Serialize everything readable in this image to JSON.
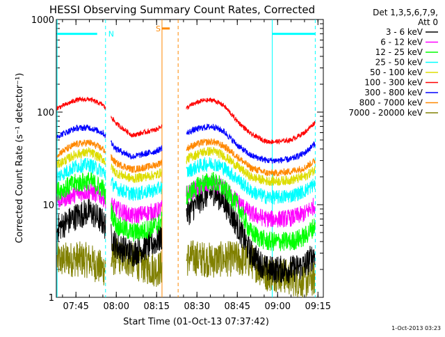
{
  "chart_data": {
    "type": "line",
    "title": "HESSI Observing Summary Count Rates, Corrected",
    "xlabel": "Start Time (01-Oct-13 07:37:42)",
    "ylabel": "Corrected Count Rate (s⁻¹ detector⁻¹)",
    "y_scale": "log",
    "ylim": [
      1,
      1000
    ],
    "xlim": [
      "07:37:42",
      "09:17:00"
    ],
    "x_ticks": [
      "07:45",
      "08:00",
      "08:15",
      "08:30",
      "08:45",
      "09:00",
      "09:15"
    ],
    "y_ticks": [
      "1",
      "10",
      "100",
      "1000"
    ],
    "legend_header": [
      "Det 1,3,5,6,7,9,",
      "Att 0"
    ],
    "legend_position": "right",
    "series": [
      {
        "name": "3 - 6 keV",
        "color": "#000000",
        "x": [
          "07:38",
          "07:45",
          "07:50",
          "07:55",
          "08:00",
          "08:06",
          "08:10",
          "08:15",
          "08:28",
          "08:32",
          "08:36",
          "08:40",
          "08:45",
          "08:50",
          "08:56",
          "09:00",
          "09:05",
          "09:10",
          "09:14"
        ],
        "y": [
          5.5,
          7.5,
          8.5,
          6.5,
          3.6,
          3.0,
          3.4,
          4.0,
          9.0,
          12,
          14,
          11,
          6.0,
          3.0,
          2.0,
          2.0,
          2.0,
          2.2,
          3.0
        ]
      },
      {
        "name": "6 - 12 keV",
        "color": "#ff00ff",
        "x": [
          "07:38",
          "07:45",
          "07:50",
          "07:55",
          "08:00",
          "08:06",
          "08:10",
          "08:15",
          "08:28",
          "08:32",
          "08:36",
          "08:40",
          "08:45",
          "08:50",
          "08:56",
          "09:00",
          "09:05",
          "09:10",
          "09:14"
        ],
        "y": [
          11,
          13,
          14,
          12,
          9.0,
          7.5,
          8.0,
          8.5,
          14,
          16,
          17,
          15,
          11,
          8.0,
          7.0,
          7.0,
          7.2,
          8.0,
          10
        ]
      },
      {
        "name": "12 - 25 keV",
        "color": "#00ff00",
        "x": [
          "07:38",
          "07:45",
          "07:50",
          "07:55",
          "08:00",
          "08:06",
          "08:10",
          "08:15",
          "08:28",
          "08:32",
          "08:36",
          "08:40",
          "08:45",
          "08:50",
          "08:56",
          "09:00",
          "09:05",
          "09:10",
          "09:14"
        ],
        "y": [
          14,
          17,
          18,
          15,
          6.0,
          5.0,
          5.2,
          6.0,
          14,
          17,
          18,
          15,
          10,
          5.0,
          4.0,
          4.0,
          4.0,
          4.5,
          6.0
        ]
      },
      {
        "name": "25 - 50 keV",
        "color": "#00ffff",
        "x": [
          "07:38",
          "07:45",
          "07:50",
          "07:55",
          "08:00",
          "08:06",
          "08:10",
          "08:15",
          "08:28",
          "08:32",
          "08:36",
          "08:40",
          "08:45",
          "08:50",
          "08:56",
          "09:00",
          "09:05",
          "09:10",
          "09:14"
        ],
        "y": [
          20,
          26,
          27,
          23,
          15,
          13,
          13.5,
          14.5,
          24,
          27,
          28,
          25,
          19,
          14,
          12,
          12,
          12.5,
          14,
          17
        ]
      },
      {
        "name": "50 - 100 keV",
        "color": "#dddd00",
        "x": [
          "07:38",
          "07:45",
          "07:50",
          "07:55",
          "08:00",
          "08:06",
          "08:10",
          "08:15",
          "08:28",
          "08:32",
          "08:36",
          "08:40",
          "08:45",
          "08:50",
          "08:56",
          "09:00",
          "09:05",
          "09:10",
          "09:14"
        ],
        "y": [
          27,
          35,
          37,
          31,
          22,
          19,
          20,
          21,
          33,
          37,
          38,
          34,
          26,
          20,
          18,
          18,
          18.5,
          20,
          24
        ]
      },
      {
        "name": "100 - 300 keV",
        "color": "#ff0000",
        "x": [
          "07:38",
          "07:45",
          "07:50",
          "07:55",
          "08:00",
          "08:06",
          "08:10",
          "08:15",
          "08:28",
          "08:32",
          "08:36",
          "08:40",
          "08:45",
          "08:50",
          "08:56",
          "09:00",
          "09:05",
          "09:10",
          "09:14"
        ],
        "y": [
          110,
          135,
          138,
          120,
          75,
          56,
          60,
          65,
          120,
          133,
          135,
          118,
          80,
          58,
          48,
          48,
          50,
          60,
          78
        ]
      },
      {
        "name": "300 - 800 keV",
        "color": "#0000ff",
        "x": [
          "07:38",
          "07:45",
          "07:50",
          "07:55",
          "08:00",
          "08:06",
          "08:10",
          "08:15",
          "08:28",
          "08:32",
          "08:36",
          "08:40",
          "08:45",
          "08:50",
          "08:56",
          "09:00",
          "09:05",
          "09:10",
          "09:14"
        ],
        "y": [
          55,
          67,
          68,
          60,
          40,
          33,
          35,
          38,
          63,
          68,
          70,
          62,
          44,
          34,
          30,
          30,
          31,
          36,
          46
        ]
      },
      {
        "name": "800 - 7000 keV",
        "color": "#ff8800",
        "x": [
          "07:38",
          "07:45",
          "07:50",
          "07:55",
          "08:00",
          "08:06",
          "08:10",
          "08:15",
          "08:28",
          "08:32",
          "08:36",
          "08:40",
          "08:45",
          "08:50",
          "08:56",
          "09:00",
          "09:05",
          "09:10",
          "09:14"
        ],
        "y": [
          35,
          45,
          47,
          40,
          28,
          24,
          25,
          27,
          43,
          47,
          48,
          43,
          33,
          25,
          22,
          22,
          23,
          25,
          30
        ]
      },
      {
        "name": "7000 - 20000 keV",
        "color": "#808000",
        "x": [
          "07:38",
          "07:45",
          "07:50",
          "07:55",
          "08:00",
          "08:06",
          "08:10",
          "08:15",
          "08:28",
          "08:32",
          "08:36",
          "08:40",
          "08:45",
          "08:50",
          "08:56",
          "09:00",
          "09:05",
          "09:10",
          "09:14"
        ],
        "y": [
          2.5,
          2.6,
          2.5,
          2.0,
          2.8,
          2.5,
          2.2,
          2.0,
          2.7,
          2.6,
          2.5,
          2.6,
          2.6,
          2.5,
          1.8,
          1.8,
          1.6,
          1.5,
          1.6
        ]
      }
    ],
    "annotations": [
      {
        "label": "N",
        "color": "#00ffff",
        "type": "night",
        "start": "07:38",
        "end": "07:56",
        "y": 700
      },
      {
        "label": "",
        "color": "#00ffff",
        "type": "night",
        "start": "08:58",
        "end": "09:14",
        "y": 700
      },
      {
        "label": "S",
        "color": "#ff8800",
        "type": "saa",
        "start": "08:17",
        "end": "08:23",
        "y": 800
      }
    ],
    "data_gaps": [
      {
        "start": "07:56",
        "end": "07:58"
      },
      {
        "start": "08:17",
        "end": "08:26"
      }
    ],
    "timestamp": "1-Oct-2013 03:23"
  }
}
